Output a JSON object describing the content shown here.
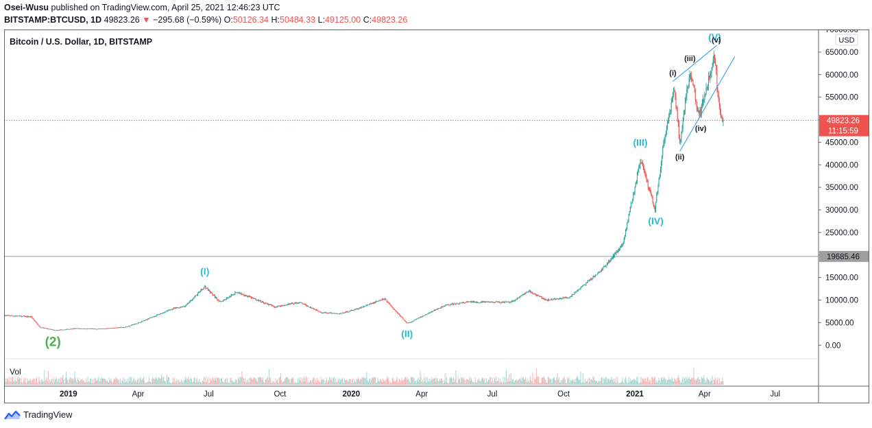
{
  "header": {
    "publisher": "Osei-Wusu",
    "published_text": "published on TradingView.com, April 25, 2021 12:46:23 UTC",
    "symbol_interval": "BITSTAMP:BTCUSD, 1D",
    "last": "49823.26",
    "change": "−295.68 (−0.59%)",
    "open_label": "O:",
    "open": "50126.34",
    "high_label": "H:",
    "high": "50484.33",
    "low_label": "L:",
    "low": "49125.00",
    "close_label": "C:",
    "close": "49823.26"
  },
  "footer": {
    "brand": "TradingView",
    "logo_icon": "tradingview-logo-icon"
  },
  "colors": {
    "up": "#26a69a",
    "down": "#ef5350",
    "wave_cyan": "#26bcd4",
    "wave_green": "#4caf50",
    "trendline": "#2196f3",
    "price_tag": "#ef5350",
    "level_tag": "#9e9e9e"
  },
  "chart_data": {
    "type": "candlestick",
    "title": "Bitcoin / U.S. Dollar, 1D, BITSTAMP",
    "currency": "USD",
    "ylim": [
      -3000,
      70000
    ],
    "y_ticks": [
      "70000.00",
      "65000.00",
      "60000.00",
      "55000.00",
      "50000.00",
      "45000.00",
      "40000.00",
      "35000.00",
      "30000.00",
      "25000.00",
      "20000.00",
      "15000.00",
      "10000.00",
      "5000.00",
      "0.00"
    ],
    "y_tick_values": [
      70000,
      65000,
      60000,
      55000,
      50000,
      45000,
      40000,
      35000,
      30000,
      25000,
      20000,
      15000,
      10000,
      5000,
      0
    ],
    "x_ticks": [
      "2019",
      "Apr",
      "Jul",
      "Oct",
      "2020",
      "Apr",
      "Jul",
      "Oct",
      "2021",
      "Apr",
      "Jul"
    ],
    "x_tick_dates": [
      "2019-01-01",
      "2019-04-01",
      "2019-07-01",
      "2019-10-01",
      "2020-01-01",
      "2020-04-01",
      "2020-07-01",
      "2020-10-01",
      "2021-01-01",
      "2021-04-01",
      "2021-07-01"
    ],
    "x_range": [
      "2018-10-10",
      "2021-08-26"
    ],
    "last_price": {
      "value": 49823.26,
      "label": "49823.26",
      "countdown": "11:15:59"
    },
    "horizontal_level": {
      "value": 19685.46,
      "label": "19685.46"
    },
    "price_path": [
      [
        "2018-10-10",
        6600
      ],
      [
        "2018-11-14",
        6300
      ],
      [
        "2018-11-25",
        4000
      ],
      [
        "2018-12-15",
        3300
      ],
      [
        "2019-01-10",
        3700
      ],
      [
        "2019-02-10",
        3600
      ],
      [
        "2019-03-15",
        4000
      ],
      [
        "2019-04-02",
        5000
      ],
      [
        "2019-05-14",
        8000
      ],
      [
        "2019-06-01",
        8700
      ],
      [
        "2019-06-26",
        13000
      ],
      [
        "2019-07-16",
        9500
      ],
      [
        "2019-08-06",
        11800
      ],
      [
        "2019-09-24",
        8500
      ],
      [
        "2019-10-26",
        9500
      ],
      [
        "2019-11-25",
        7200
      ],
      [
        "2019-12-18",
        7000
      ],
      [
        "2020-01-10",
        8100
      ],
      [
        "2020-02-13",
        10300
      ],
      [
        "2020-03-12",
        5000
      ],
      [
        "2020-03-16",
        5000
      ],
      [
        "2020-04-30",
        8800
      ],
      [
        "2020-06-01",
        9600
      ],
      [
        "2020-07-25",
        9500
      ],
      [
        "2020-08-17",
        12000
      ],
      [
        "2020-09-08",
        10000
      ],
      [
        "2020-10-08",
        10600
      ],
      [
        "2020-10-25",
        13000
      ],
      [
        "2020-11-15",
        16000
      ],
      [
        "2020-12-01",
        19000
      ],
      [
        "2020-12-17",
        22800
      ],
      [
        "2021-01-08",
        41000
      ],
      [
        "2021-01-27",
        30000
      ],
      [
        "2021-02-08",
        46000
      ],
      [
        "2021-02-21",
        57000
      ],
      [
        "2021-02-28",
        45000
      ],
      [
        "2021-03-13",
        61000
      ],
      [
        "2021-03-25",
        51000
      ],
      [
        "2021-04-14",
        64000
      ],
      [
        "2021-04-18",
        56000
      ],
      [
        "2021-04-22",
        51000
      ],
      [
        "2021-04-25",
        49823.26
      ]
    ],
    "wave_labels": [
      {
        "text": "(2)",
        "date": "2018-12-12",
        "price": -200,
        "color": "green",
        "size": "large"
      },
      {
        "text": "(I)",
        "date": "2019-06-26",
        "price": 15600,
        "color": "cyan",
        "size": "medium"
      },
      {
        "text": "(II)",
        "date": "2020-03-13",
        "price": 1800,
        "color": "cyan",
        "size": "medium"
      },
      {
        "text": "(III)",
        "date": "2021-01-08",
        "price": 44200,
        "color": "cyan",
        "size": "medium"
      },
      {
        "text": "(IV)",
        "date": "2021-01-28",
        "price": 26800,
        "color": "cyan",
        "size": "medium"
      },
      {
        "text": "(3)",
        "date": "2021-04-12",
        "price": 70700,
        "color": "green",
        "size": "large"
      },
      {
        "text": "(V)",
        "date": "2021-04-14",
        "price": 67600,
        "color": "cyan",
        "size": "medium"
      },
      {
        "text": "(i)",
        "date": "2021-02-19",
        "price": 59800,
        "color": "dark",
        "size": "small"
      },
      {
        "text": "(ii)",
        "date": "2021-02-28",
        "price": 41200,
        "color": "dark",
        "size": "small"
      },
      {
        "text": "(iii)",
        "date": "2021-03-13",
        "price": 63000,
        "color": "dark",
        "size": "small"
      },
      {
        "text": "(iv)",
        "date": "2021-03-27",
        "price": 47500,
        "color": "dark",
        "size": "small"
      },
      {
        "text": "(v)",
        "date": "2021-04-16",
        "price": 67100,
        "color": "dark",
        "size": "small"
      }
    ],
    "trendlines": [
      {
        "start": [
          "2021-02-19",
          58500
        ],
        "end": [
          "2021-04-17",
          66500
        ]
      },
      {
        "start": [
          "2021-02-28",
          43000
        ],
        "end": [
          "2021-05-10",
          64000
        ]
      }
    ],
    "volume_label": "Vol"
  }
}
